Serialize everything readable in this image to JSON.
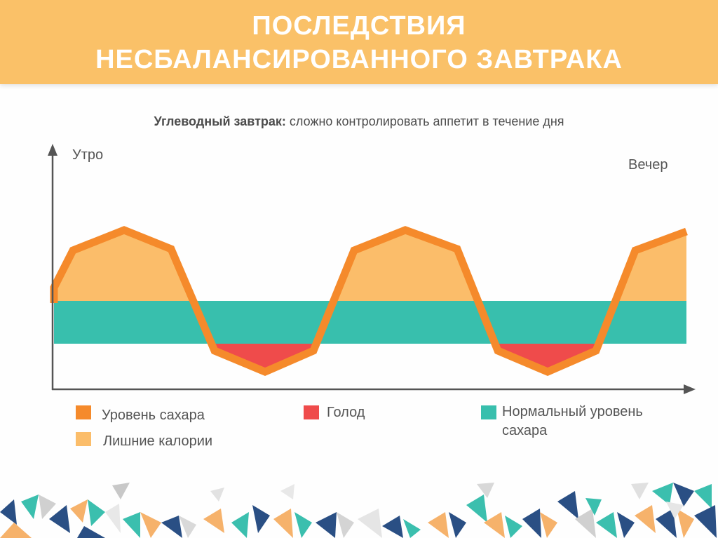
{
  "header": {
    "title_line1": "ПОСЛЕДСТВИЯ",
    "title_line2": "НЕСБАЛАНСИРОВАННОГО ЗАВТРАКА"
  },
  "subtitle": {
    "bold": "Углеводный завтрак:",
    "rest": " сложно контролировать аппетит в течение дня"
  },
  "axes": {
    "start_label": "Утро",
    "end_label": "Вечер"
  },
  "legend": {
    "sugar_level": "Уровень сахара",
    "extra_calories": "Лишние калории",
    "hunger": "Голод",
    "normal_line1": "Нормальный уровень",
    "normal_line2": "сахара"
  },
  "colors": {
    "header": "#fac168",
    "sugar_line": "#f58a2b",
    "extra_calories": "#fbbd6a",
    "hunger": "#ef4b4b",
    "normal_band": "#38bfad",
    "axis": "#555555"
  }
}
